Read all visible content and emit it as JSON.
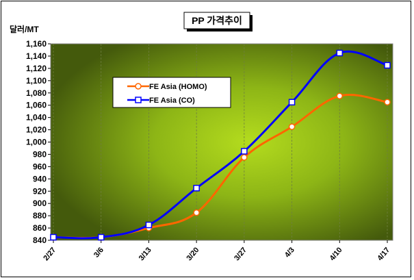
{
  "chart_data": {
    "type": "line",
    "title": "PP 가격추이",
    "ylabel": "달러/MT",
    "categories": [
      "2/27",
      "3/6",
      "3/13",
      "3/20",
      "3/27",
      "4/3",
      "4/10",
      "4/17"
    ],
    "ylim": [
      840,
      1160
    ],
    "ytick_step": 20,
    "yticks": [
      "840",
      "860",
      "880",
      "900",
      "920",
      "940",
      "960",
      "980",
      "1,000",
      "1,020",
      "1,040",
      "1,060",
      "1,080",
      "1,100",
      "1,120",
      "1,140",
      "1,160"
    ],
    "series": [
      {
        "name": "FE Asia (HOMO)",
        "color": "#FF6600",
        "marker": "circle",
        "values": [
          845,
          845,
          860,
          885,
          975,
          1025,
          1075,
          1065
        ]
      },
      {
        "name": "FE Asia (CO)",
        "color": "#0000FF",
        "marker": "square",
        "values": [
          845,
          845,
          865,
          925,
          985,
          1065,
          1145,
          1125
        ]
      }
    ],
    "legend_position": "upper-left",
    "grid": "vertical"
  }
}
